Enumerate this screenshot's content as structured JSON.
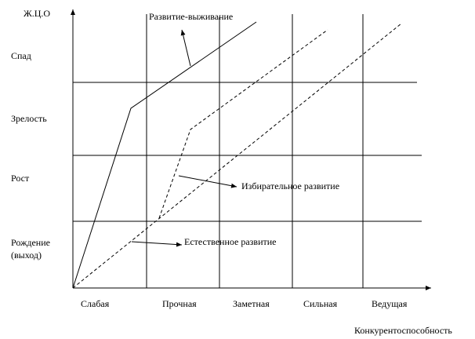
{
  "y_axis_title": "Ж.Ц.О",
  "stages": [
    "Спад",
    "Зрелость",
    "Рост",
    "Рождение",
    "(выход)"
  ],
  "x_categories": [
    "Слабая",
    "Прочная",
    "Заметная",
    "Сильная",
    "Ведущая"
  ],
  "x_axis_title": "Конкурентоспособность",
  "annotations": [
    "Развитие-выживание",
    "Избирательное развитие",
    "Естественное развитие"
  ]
}
